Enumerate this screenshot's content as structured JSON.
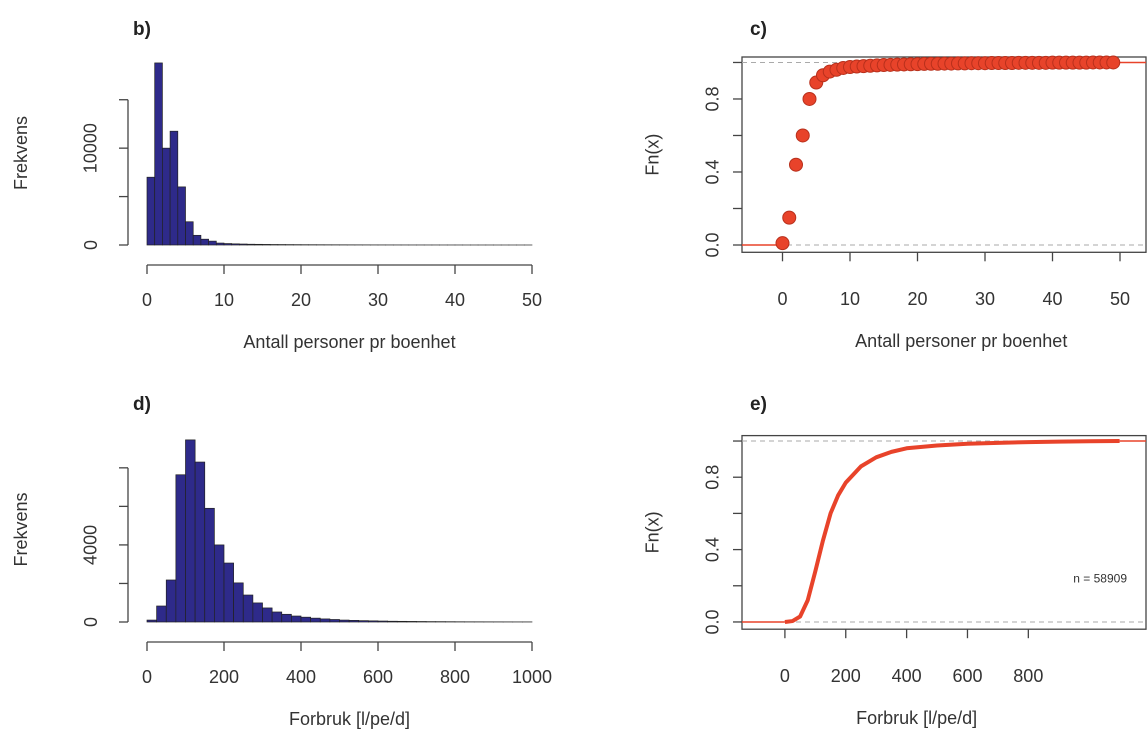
{
  "chart_data": [
    {
      "type": "histogram",
      "title": "b)",
      "xlabel": "Antall personer pr boenhet",
      "ylabel": "Frekvens",
      "bins": [
        0,
        1,
        2,
        3,
        4,
        5,
        6,
        7,
        8,
        9,
        10,
        11,
        12,
        13,
        14,
        15,
        16,
        17,
        18,
        19,
        20,
        21,
        22,
        23,
        24,
        25,
        26,
        27,
        28,
        29,
        30,
        31,
        32,
        33,
        34,
        35,
        36,
        37,
        38,
        39,
        40,
        41,
        42,
        43,
        44,
        45,
        46,
        47,
        48,
        49,
        50
      ],
      "counts": [
        7000,
        18800,
        10000,
        11750,
        6000,
        2400,
        1000,
        600,
        400,
        200,
        150,
        120,
        100,
        80,
        70,
        60,
        50,
        45,
        40,
        35,
        30,
        28,
        25,
        22,
        20,
        18,
        16,
        14,
        12,
        10,
        9,
        8,
        7,
        6,
        5,
        5,
        4,
        4,
        3,
        3,
        3,
        2,
        2,
        2,
        2,
        1,
        1,
        1,
        1,
        1
      ],
      "color": "#2e2a8a",
      "xlim": [
        0,
        50
      ],
      "ylim": [
        0,
        19000
      ],
      "xticks": [
        0,
        10,
        20,
        30,
        40,
        50
      ],
      "yticks": [
        0,
        10000
      ],
      "yminorticks": [
        5000,
        15000
      ]
    },
    {
      "type": "ecdf",
      "title": "c)",
      "xlabel": "Antall personer pr boenhet",
      "ylabel": "Fn(x)",
      "x": [
        0,
        1,
        2,
        3,
        4,
        5,
        6,
        7,
        8,
        9,
        10,
        11,
        12,
        13,
        14,
        15,
        16,
        17,
        18,
        19,
        20,
        21,
        22,
        23,
        24,
        25,
        26,
        27,
        28,
        29,
        30,
        31,
        32,
        33,
        34,
        35,
        36,
        37,
        38,
        39,
        40,
        41,
        42,
        43,
        44,
        45,
        46,
        47,
        48,
        49
      ],
      "values": [
        0.01,
        0.15,
        0.44,
        0.6,
        0.8,
        0.89,
        0.93,
        0.95,
        0.96,
        0.97,
        0.975,
        0.978,
        0.98,
        0.982,
        0.984,
        0.986,
        0.987,
        0.988,
        0.989,
        0.99,
        0.991,
        0.992,
        0.993,
        0.993,
        0.994,
        0.994,
        0.995,
        0.995,
        0.996,
        0.996,
        0.996,
        0.997,
        0.997,
        0.997,
        0.997,
        0.998,
        0.998,
        0.998,
        0.998,
        0.998,
        0.999,
        0.999,
        0.999,
        0.999,
        0.999,
        0.999,
        1,
        1,
        1,
        1
      ],
      "color": "#e8432a",
      "xlim": [
        -6,
        54
      ],
      "ylim": [
        -0.04,
        1.03
      ],
      "xticks": [
        0,
        10,
        20,
        30,
        40,
        50
      ],
      "yticks": [
        {
          "value": 0,
          "label": "0.0"
        },
        0.4,
        0.8
      ],
      "yminorticks": [
        0.2,
        0.6,
        1
      ],
      "dashed_hlines": [
        0,
        1
      ],
      "points": true
    },
    {
      "type": "histogram",
      "title": "d)",
      "xlabel": "Forbruk [l/pe/d]",
      "ylabel": "Frekvens",
      "bins": [
        0,
        25,
        50,
        75,
        100,
        125,
        150,
        175,
        200,
        225,
        250,
        275,
        300,
        325,
        350,
        375,
        400,
        425,
        450,
        475,
        500,
        525,
        550,
        575,
        600,
        625,
        650,
        675,
        700,
        725,
        750,
        775,
        800,
        825,
        850,
        875,
        900,
        925,
        950,
        975,
        1000
      ],
      "counts": [
        100,
        830,
        2180,
        7640,
        9450,
        8300,
        5900,
        4000,
        3060,
        2030,
        1400,
        990,
        730,
        520,
        400,
        310,
        250,
        200,
        160,
        130,
        100,
        85,
        70,
        60,
        50,
        40,
        35,
        30,
        25,
        20,
        18,
        15,
        12,
        10,
        9,
        8,
        7,
        6,
        5,
        5
      ],
      "color": "#2e2a8a",
      "xlim": [
        0,
        1000
      ],
      "ylim": [
        0,
        9600
      ],
      "xticks": [
        0,
        200,
        400,
        600,
        800,
        1000
      ],
      "yticks": [
        0,
        4000
      ],
      "yminorticks": [
        2000,
        6000,
        8000
      ]
    },
    {
      "type": "ecdf",
      "title": "e)",
      "xlabel": "Forbruk [l/pe/d]",
      "ylabel": "Fn(x)",
      "x": [
        0,
        25,
        50,
        75,
        100,
        125,
        150,
        175,
        200,
        250,
        300,
        350,
        400,
        500,
        600,
        700,
        800,
        900,
        1000,
        1100
      ],
      "values": [
        0,
        0.005,
        0.03,
        0.12,
        0.28,
        0.45,
        0.6,
        0.7,
        0.77,
        0.86,
        0.91,
        0.94,
        0.96,
        0.975,
        0.985,
        0.99,
        0.994,
        0.997,
        0.999,
        1
      ],
      "color": "#e8432a",
      "xlim": [
        -141,
        1190
      ],
      "ylim": [
        -0.04,
        1.03
      ],
      "xticks": [
        0,
        200,
        400,
        600,
        800
      ],
      "yticks": [
        {
          "value": 0,
          "label": "0.0"
        },
        0.4,
        0.8
      ],
      "yminorticks": [
        0.2,
        0.6,
        1
      ],
      "dashed_hlines": [
        0,
        1
      ],
      "points": false,
      "annotation": "n = 58909"
    }
  ]
}
